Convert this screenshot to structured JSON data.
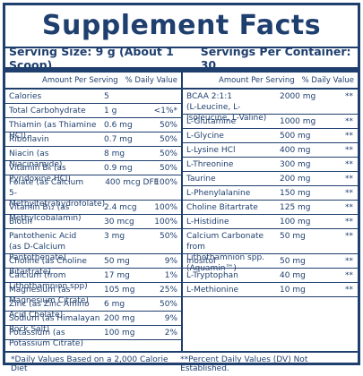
{
  "title": "Supplement Facts",
  "serving": {
    "size": "Serving Size: 9 g (About 1 Scoop)",
    "per_container": "Servings Per Container: 30"
  },
  "header": {
    "amount": "Amount Per Serving",
    "dv": "% Daily Value"
  },
  "left": [
    {
      "name": "Calories",
      "amount": "5",
      "dv": ""
    },
    {
      "name": "Total Carbohydrate",
      "amount": "1 g",
      "dv": "<1%*"
    },
    {
      "name": "Thiamin (as Thiamine HCl)",
      "amount": "0.6 mg",
      "dv": "50%"
    },
    {
      "name": "Riboflavin",
      "amount": "0.7 mg",
      "dv": "50%"
    },
    {
      "name": "Niacin (as Niacinamide)",
      "amount": "8 mg",
      "dv": "50%"
    },
    {
      "name": "Vitamin B₆ (as Pyridoxine HCl)",
      "amount": "0.9 mg",
      "dv": "50%"
    },
    {
      "name": "Folate (as Calcium\n5-Methyltetrahydrofolate)",
      "amount": "400 mcg DFE",
      "dv": "100%"
    },
    {
      "name": "Vitamin B₁₂ (as Methylcobalamin)",
      "amount": "2.4 mcg",
      "dv": "100%"
    },
    {
      "name": "Biotin",
      "amount": "30 mcg",
      "dv": "100%"
    },
    {
      "name": "Pantothenic Acid\n(as D-Calcium Pantothenate)",
      "amount": "3 mg",
      "dv": "50%"
    },
    {
      "name": "Choline (as Choline Bitartrate)",
      "amount": "50 mg",
      "dv": "9%"
    },
    {
      "name": "Calcium (from Lithothamnion spp)",
      "amount": "17 mg",
      "dv": "1%"
    },
    {
      "name": "Magnesium (as Magnesium Citrate)",
      "amount": "105 mg",
      "dv": "25%"
    },
    {
      "name": "Zinc (as Zinc Amino Acid Chelate)",
      "amount": "6 mg",
      "dv": "50%"
    },
    {
      "name": "Sodium (as Himalayan Rock Salt)",
      "amount": "200 mg",
      "dv": "9%"
    },
    {
      "name": "Potassium (as Potassium Citrate)",
      "amount": "100 mg",
      "dv": "2%"
    }
  ],
  "right": [
    {
      "name": "BCAA 2:1:1\n(L-Leucine, L-Isoleucine, L-Valine)",
      "amount": "2000 mg",
      "dv": "**"
    },
    {
      "name": "L-Glutamine",
      "amount": "1000 mg",
      "dv": "**"
    },
    {
      "name": "L-Glycine",
      "amount": "500 mg",
      "dv": "**"
    },
    {
      "name": "L-Lysine HCl",
      "amount": "400 mg",
      "dv": "**"
    },
    {
      "name": "L-Threonine",
      "amount": "300 mg",
      "dv": "**"
    },
    {
      "name": "Taurine",
      "amount": "200 mg",
      "dv": "**"
    },
    {
      "name": "L-Phenylalanine",
      "amount": "150 mg",
      "dv": "**"
    },
    {
      "name": "Choline Bitartrate",
      "amount": "125 mg",
      "dv": "**"
    },
    {
      "name": "L-Histidine",
      "amount": "100 mg",
      "dv": "**"
    },
    {
      "name": "Calcium Carbonate from\nLithothamnion spp. (Aquamin™)",
      "amount": "50 mg",
      "dv": "**"
    },
    {
      "name": "Inositol",
      "amount": "50 mg",
      "dv": "**"
    },
    {
      "name": "L-Tryptophan",
      "amount": "40 mg",
      "dv": "**"
    },
    {
      "name": "L-Methionine",
      "amount": "10 mg",
      "dv": "**"
    }
  ],
  "footer": {
    "left": "*Daily Values Based on a 2,000 Calorie Diet",
    "right": "**Percent Daily Values (DV) Not Established."
  }
}
